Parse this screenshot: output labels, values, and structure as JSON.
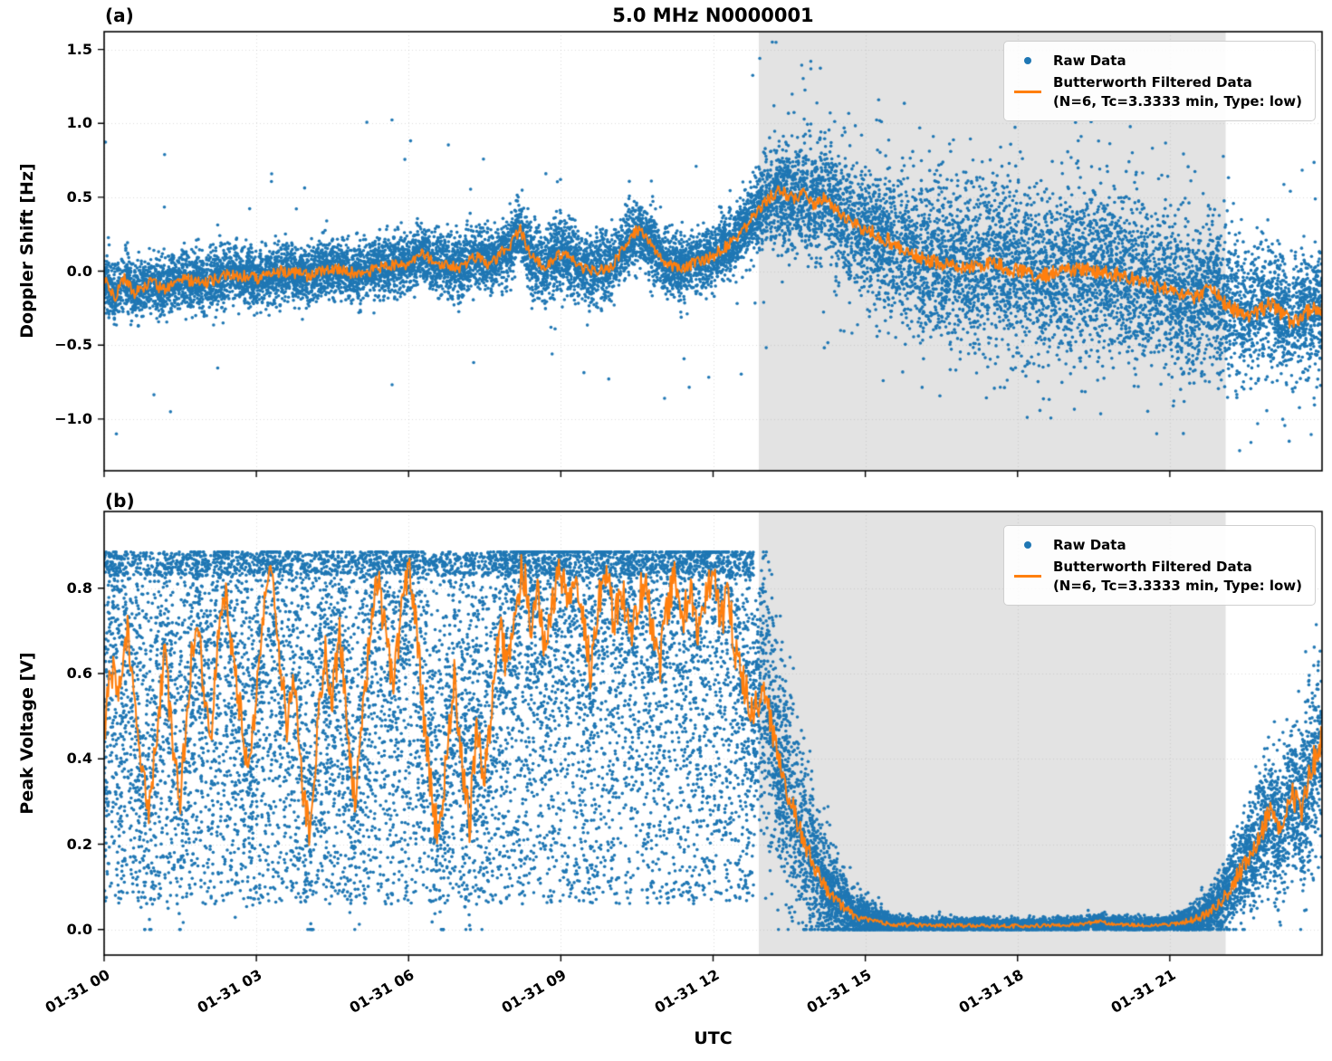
{
  "figure": {
    "panel_a_label": "(a)",
    "panel_b_label": "(b)"
  },
  "colors": {
    "raw": "#1f77b4",
    "filtered": "#ff7f0e",
    "shaded_region": "#e3e3e3",
    "grid": "#b0b0b0",
    "spine": "#000000"
  },
  "legend": {
    "raw_label": "Raw Data",
    "filtered_label_line1": "Butterworth Filtered Data",
    "filtered_label_line2": "(N=6, Tc=3.3333 min, Type: low)"
  },
  "chart_data": [
    {
      "type": "scatter",
      "panel": "a",
      "title": "5.0 MHz N0000001",
      "ylabel": "Doppler Shift [Hz]",
      "ylim": [
        -1.35,
        1.62
      ],
      "xlim_hours": [
        0,
        24
      ],
      "yticks": [
        {
          "v": 1.5,
          "label": "1.5"
        },
        {
          "v": 1.0,
          "label": "1.0"
        },
        {
          "v": 0.5,
          "label": "0.5"
        },
        {
          "v": 0.0,
          "label": "0.0"
        },
        {
          "v": -0.5,
          "label": "−0.5"
        },
        {
          "v": -1.0,
          "label": "−1.0"
        }
      ],
      "xticks_hours": [
        0,
        3,
        6,
        9,
        12,
        15,
        18,
        21
      ],
      "show_xtick_labels": false,
      "shaded_region_hours": [
        12.9,
        22.1
      ],
      "series": [
        {
          "name": "Raw Data",
          "plot": "scatter",
          "color": "#1f77b4",
          "generator": {
            "n_points": 16000,
            "sigma_envelope": [
              [
                0,
                0.1
              ],
              [
                6,
                0.1
              ],
              [
                9,
                0.12
              ],
              [
                12.5,
                0.11
              ],
              [
                13,
                0.14
              ],
              [
                13.6,
                0.18
              ],
              [
                14.5,
                0.2
              ],
              [
                16,
                0.24
              ],
              [
                18,
                0.27
              ],
              [
                20,
                0.27
              ],
              [
                21.5,
                0.24
              ],
              [
                22.5,
                0.22
              ],
              [
                24,
                0.2
              ]
            ],
            "outlier_prob_envelope": [
              [
                0,
                0.004
              ],
              [
                12.5,
                0.004
              ],
              [
                13,
                0.015
              ],
              [
                14,
                0.025
              ],
              [
                16,
                0.03
              ],
              [
                21,
                0.03
              ],
              [
                22.1,
                0.018
              ],
              [
                24,
                0.02
              ]
            ],
            "outlier_range": [
              0.35,
              1.05
            ],
            "outlier_down_bias": 0.55,
            "clip": [
              -1.28,
              1.55
            ]
          }
        },
        {
          "name": "Butterworth Filtered Data (N=6, Tc=3.3333 min, Type: low)",
          "plot": "line",
          "color": "#ff7f0e",
          "points": [
            [
              0,
              -0.05
            ],
            [
              0.2,
              -0.18
            ],
            [
              0.4,
              -0.05
            ],
            [
              0.6,
              -0.15
            ],
            [
              0.9,
              -0.08
            ],
            [
              1.2,
              -0.12
            ],
            [
              1.5,
              -0.05
            ],
            [
              2,
              -0.08
            ],
            [
              2.5,
              -0.02
            ],
            [
              3,
              -0.05
            ],
            [
              3.5,
              0
            ],
            [
              4,
              -0.03
            ],
            [
              4.5,
              0.02
            ],
            [
              5,
              -0.02
            ],
            [
              5.5,
              0.03
            ],
            [
              6,
              0.05
            ],
            [
              6.3,
              0.12
            ],
            [
              6.5,
              0.05
            ],
            [
              7,
              0.02
            ],
            [
              7.3,
              0.1
            ],
            [
              7.6,
              0.05
            ],
            [
              8,
              0.18
            ],
            [
              8.2,
              0.28
            ],
            [
              8.4,
              0.1
            ],
            [
              8.7,
              0.02
            ],
            [
              9,
              0.12
            ],
            [
              9.3,
              0.05
            ],
            [
              9.6,
              0
            ],
            [
              10,
              0.03
            ],
            [
              10.3,
              0.2
            ],
            [
              10.5,
              0.28
            ],
            [
              10.7,
              0.22
            ],
            [
              11,
              0.08
            ],
            [
              11.3,
              0.02
            ],
            [
              11.6,
              0.05
            ],
            [
              12,
              0.1
            ],
            [
              12.3,
              0.18
            ],
            [
              12.6,
              0.28
            ],
            [
              12.9,
              0.42
            ],
            [
              13.1,
              0.5
            ],
            [
              13.3,
              0.55
            ],
            [
              13.6,
              0.48
            ],
            [
              13.8,
              0.52
            ],
            [
              14,
              0.45
            ],
            [
              14.2,
              0.5
            ],
            [
              14.5,
              0.38
            ],
            [
              14.8,
              0.32
            ],
            [
              15.2,
              0.25
            ],
            [
              15.6,
              0.18
            ],
            [
              16,
              0.1
            ],
            [
              16.5,
              0.05
            ],
            [
              17,
              0.02
            ],
            [
              17.5,
              0.05
            ],
            [
              18,
              0
            ],
            [
              18.5,
              -0.03
            ],
            [
              19,
              0.02
            ],
            [
              19.5,
              0
            ],
            [
              20,
              -0.02
            ],
            [
              20.5,
              -0.08
            ],
            [
              21,
              -0.12
            ],
            [
              21.5,
              -0.18
            ],
            [
              21.8,
              -0.12
            ],
            [
              22.2,
              -0.25
            ],
            [
              22.6,
              -0.3
            ],
            [
              23,
              -0.22
            ],
            [
              23.4,
              -0.35
            ],
            [
              23.7,
              -0.28
            ],
            [
              24,
              -0.25
            ]
          ],
          "wiggle_envelope": [
            [
              0,
              0.04
            ],
            [
              12,
              0.04
            ],
            [
              13,
              0.045
            ],
            [
              16,
              0.05
            ],
            [
              24,
              0.055
            ]
          ]
        }
      ]
    },
    {
      "type": "scatter",
      "panel": "b",
      "xlabel": "UTC",
      "ylabel": "Peak Voltage [V]",
      "ylim": [
        -0.06,
        0.98
      ],
      "xlim_hours": [
        0,
        24
      ],
      "yticks": [
        {
          "v": 0.8,
          "label": "0.8"
        },
        {
          "v": 0.6,
          "label": "0.6"
        },
        {
          "v": 0.4,
          "label": "0.4"
        },
        {
          "v": 0.2,
          "label": "0.2"
        },
        {
          "v": 0.0,
          "label": "0.0"
        }
      ],
      "xticks_hours": [
        0,
        3,
        6,
        9,
        12,
        15,
        18,
        21
      ],
      "show_xtick_labels": true,
      "xtick_labels": [
        "01-31 00",
        "01-31 03",
        "01-31 06",
        "01-31 09",
        "01-31 12",
        "01-31 15",
        "01-31 18",
        "01-31 21"
      ],
      "shaded_region_hours": [
        12.9,
        22.1
      ],
      "series": [
        {
          "name": "Raw Data",
          "plot": "scatter",
          "color": "#1f77b4",
          "generator": {
            "n_points": 20000,
            "sigma_envelope": [
              [
                0,
                0.17
              ],
              [
                12.5,
                0.17
              ],
              [
                13.2,
                0.14
              ],
              [
                14,
                0.08
              ],
              [
                14.8,
                0.03
              ],
              [
                15.5,
                0.012
              ],
              [
                16,
                0.008
              ],
              [
                21,
                0.008
              ],
              [
                21.6,
                0.02
              ],
              [
                22.3,
                0.05
              ],
              [
                23,
                0.08
              ],
              [
                24,
                0.11
              ]
            ],
            "uniform_band": {
              "t_end": 12.8,
              "prob": 0.5,
              "range": [
                0.06,
                0.88
              ]
            },
            "top_band": {
              "t_end": 12.8,
              "prob": 0.15,
              "range": [
                0.83,
                0.885
              ]
            },
            "clip": [
              0.0,
              0.885
            ]
          }
        },
        {
          "name": "Butterworth Filtered Data (N=6, Tc=3.3333 min, Type: low)",
          "plot": "line",
          "color": "#ff7f0e",
          "points": [
            [
              0,
              0.45
            ],
            [
              0.15,
              0.62
            ],
            [
              0.3,
              0.55
            ],
            [
              0.45,
              0.7
            ],
            [
              0.6,
              0.52
            ],
            [
              0.75,
              0.38
            ],
            [
              0.9,
              0.28
            ],
            [
              1.05,
              0.48
            ],
            [
              1.2,
              0.65
            ],
            [
              1.35,
              0.42
            ],
            [
              1.5,
              0.3
            ],
            [
              1.65,
              0.55
            ],
            [
              1.8,
              0.72
            ],
            [
              1.95,
              0.6
            ],
            [
              2.1,
              0.45
            ],
            [
              2.25,
              0.68
            ],
            [
              2.4,
              0.8
            ],
            [
              2.55,
              0.62
            ],
            [
              2.7,
              0.5
            ],
            [
              2.85,
              0.35
            ],
            [
              3,
              0.55
            ],
            [
              3.15,
              0.75
            ],
            [
              3.3,
              0.85
            ],
            [
              3.45,
              0.65
            ],
            [
              3.6,
              0.48
            ],
            [
              3.75,
              0.6
            ],
            [
              3.9,
              0.35
            ],
            [
              4.05,
              0.22
            ],
            [
              4.2,
              0.45
            ],
            [
              4.35,
              0.65
            ],
            [
              4.5,
              0.55
            ],
            [
              4.65,
              0.7
            ],
            [
              4.8,
              0.45
            ],
            [
              4.95,
              0.3
            ],
            [
              5.1,
              0.52
            ],
            [
              5.25,
              0.7
            ],
            [
              5.4,
              0.82
            ],
            [
              5.55,
              0.68
            ],
            [
              5.7,
              0.55
            ],
            [
              5.85,
              0.75
            ],
            [
              6,
              0.85
            ],
            [
              6.15,
              0.7
            ],
            [
              6.3,
              0.5
            ],
            [
              6.45,
              0.32
            ],
            [
              6.6,
              0.2
            ],
            [
              6.75,
              0.42
            ],
            [
              6.9,
              0.6
            ],
            [
              7.05,
              0.38
            ],
            [
              7.2,
              0.25
            ],
            [
              7.35,
              0.48
            ],
            [
              7.5,
              0.35
            ],
            [
              7.65,
              0.55
            ],
            [
              7.8,
              0.7
            ],
            [
              7.95,
              0.6
            ],
            [
              8.1,
              0.75
            ],
            [
              8.25,
              0.85
            ],
            [
              8.4,
              0.72
            ],
            [
              8.55,
              0.8
            ],
            [
              8.7,
              0.65
            ],
            [
              8.85,
              0.78
            ],
            [
              9,
              0.85
            ],
            [
              9.15,
              0.75
            ],
            [
              9.3,
              0.82
            ],
            [
              9.45,
              0.7
            ],
            [
              9.6,
              0.6
            ],
            [
              9.75,
              0.78
            ],
            [
              9.9,
              0.85
            ],
            [
              10.05,
              0.72
            ],
            [
              10.2,
              0.8
            ],
            [
              10.35,
              0.68
            ],
            [
              10.5,
              0.75
            ],
            [
              10.65,
              0.82
            ],
            [
              10.8,
              0.7
            ],
            [
              10.95,
              0.62
            ],
            [
              11.1,
              0.75
            ],
            [
              11.25,
              0.85
            ],
            [
              11.4,
              0.72
            ],
            [
              11.55,
              0.8
            ],
            [
              11.7,
              0.68
            ],
            [
              11.85,
              0.78
            ],
            [
              12,
              0.85
            ],
            [
              12.15,
              0.72
            ],
            [
              12.3,
              0.78
            ],
            [
              12.45,
              0.65
            ],
            [
              12.6,
              0.58
            ],
            [
              12.8,
              0.5
            ],
            [
              13,
              0.58
            ],
            [
              13.2,
              0.45
            ],
            [
              13.4,
              0.35
            ],
            [
              13.6,
              0.28
            ],
            [
              13.8,
              0.2
            ],
            [
              14,
              0.15
            ],
            [
              14.2,
              0.1
            ],
            [
              14.5,
              0.06
            ],
            [
              14.8,
              0.03
            ],
            [
              15.1,
              0.02
            ],
            [
              15.5,
              0.012
            ],
            [
              16,
              0.01
            ],
            [
              17,
              0.009
            ],
            [
              18,
              0.008
            ],
            [
              19,
              0.01
            ],
            [
              19.6,
              0.018
            ],
            [
              20,
              0.012
            ],
            [
              20.5,
              0.01
            ],
            [
              21,
              0.012
            ],
            [
              21.4,
              0.02
            ],
            [
              21.8,
              0.04
            ],
            [
              22.1,
              0.08
            ],
            [
              22.4,
              0.14
            ],
            [
              22.7,
              0.2
            ],
            [
              23,
              0.28
            ],
            [
              23.2,
              0.22
            ],
            [
              23.4,
              0.32
            ],
            [
              23.6,
              0.28
            ],
            [
              23.8,
              0.38
            ],
            [
              24,
              0.45
            ]
          ],
          "wiggle_envelope": [
            [
              0,
              0.05
            ],
            [
              12.5,
              0.05
            ],
            [
              13.5,
              0.03
            ],
            [
              14.5,
              0.012
            ],
            [
              15.2,
              0.005
            ],
            [
              21,
              0.004
            ],
            [
              21.8,
              0.012
            ],
            [
              22.5,
              0.025
            ],
            [
              24,
              0.04
            ]
          ]
        }
      ]
    }
  ]
}
